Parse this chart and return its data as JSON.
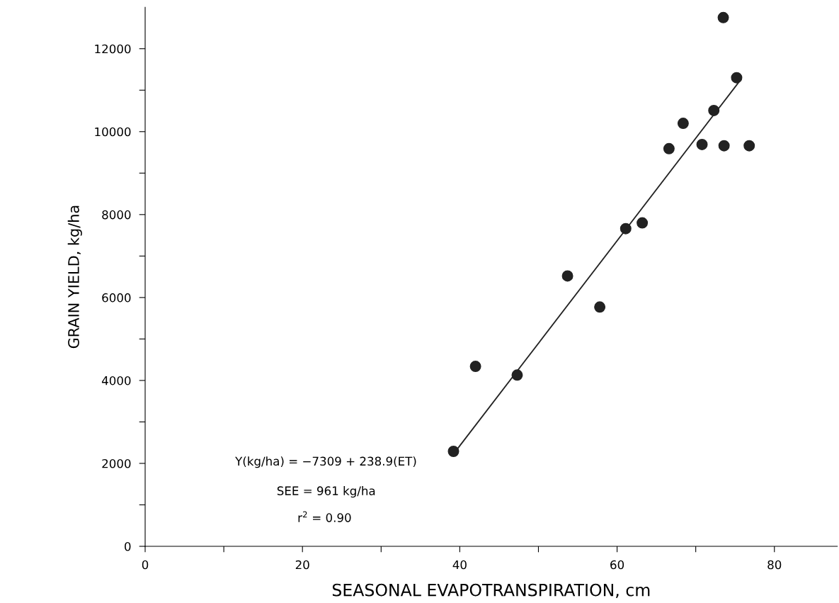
{
  "chart_data": {
    "type": "scatter",
    "xlabel": "SEASONAL EVAPOTRANSPIRATION, cm",
    "ylabel": "GRAIN YIELD, kg/ha",
    "xlim": [
      0,
      88
    ],
    "ylim": [
      0,
      13000
    ],
    "xticks": [
      0,
      {
        "value": 10,
        "label": null
      },
      20,
      {
        "value": 30,
        "label": null
      },
      40,
      {
        "value": 50,
        "label": null
      },
      60,
      {
        "value": 70,
        "label": null
      },
      80
    ],
    "yticks": [
      0,
      {
        "value": 1000,
        "label": null
      },
      2000,
      {
        "value": 3000,
        "label": null
      },
      4000,
      {
        "value": 5000,
        "label": null
      },
      6000,
      {
        "value": 7000,
        "label": null
      },
      8000,
      {
        "value": 9000,
        "label": null
      },
      10000,
      {
        "value": 11000,
        "label": null
      },
      12000
    ],
    "grid": false,
    "legend": false,
    "series": [
      {
        "marker": "circle",
        "color": "#222222",
        "x": [
          39.2,
          42.0,
          47.3,
          53.7,
          57.8,
          61.1,
          63.2,
          66.6,
          68.4,
          70.8,
          72.3,
          73.6,
          73.5,
          75.2,
          76.8
        ],
        "values": [
          2290,
          4340,
          4130,
          6520,
          5770,
          7660,
          7800,
          9590,
          10200,
          9690,
          10510,
          9660,
          12750,
          11300,
          9660
        ]
      },
      {
        "type": "line",
        "color": "#222222",
        "x": [
          39.5,
          75.5
        ],
        "values": [
          2300,
          11200
        ]
      }
    ],
    "annotations": [
      "Y(kg/ha) = −7309 + 238.9(ET)",
      "SEE = 961 kg/ha",
      "r$^{2}$ = 0.90"
    ]
  }
}
